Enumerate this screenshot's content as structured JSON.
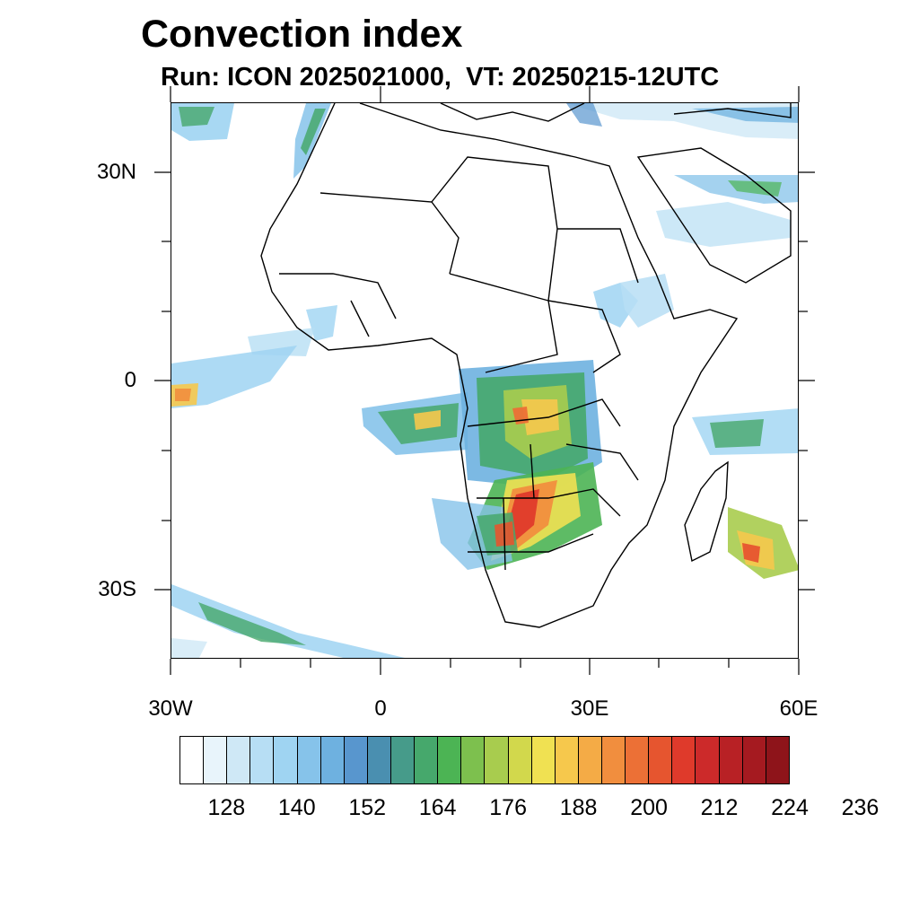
{
  "title": "Convection index",
  "subtitle": "Run: ICON 2025021000,  VT: 20250215-12UTC",
  "map": {
    "lat_labels": [
      "30N",
      "0",
      "30S"
    ],
    "lon_labels": [
      "30W",
      "0",
      "30E",
      "60E"
    ],
    "extent": {
      "lon_min": -30,
      "lon_max": 60,
      "lat_min": -40,
      "lat_max": 40
    }
  },
  "colorbar": {
    "colors": [
      "#ffffff",
      "#e8f4fb",
      "#cfe8f6",
      "#b7def4",
      "#9fd4f2",
      "#86c3ea",
      "#6eb1e0",
      "#5896ce",
      "#4a8fb0",
      "#469b8a",
      "#46a86c",
      "#4cb454",
      "#7dc04e",
      "#a8cc4e",
      "#d2d84c",
      "#f0e152",
      "#f6c84c",
      "#f4ab46",
      "#f18e3e",
      "#ec7036",
      "#e6552f",
      "#df3a2b",
      "#cc2a2a",
      "#b82125",
      "#a51a20",
      "#8e141a"
    ],
    "labels": [
      "128",
      "140",
      "152",
      "164",
      "176",
      "188",
      "200",
      "212",
      "224",
      "236"
    ]
  }
}
